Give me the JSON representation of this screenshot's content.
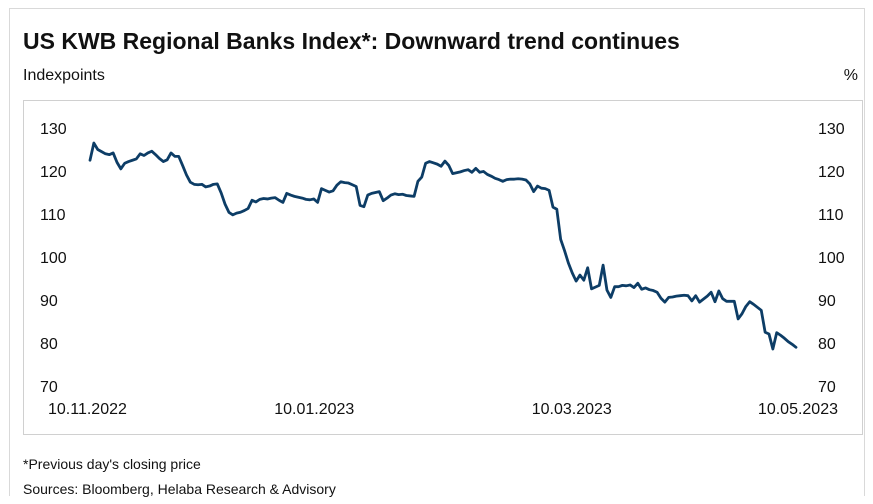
{
  "chart_data": {
    "type": "line",
    "title": "US KWB Regional Banks Index*: Downward trend continues",
    "ylabel_left": "Indexpoints",
    "ylabel_right": "%",
    "ylim": [
      70,
      130
    ],
    "yticks": [
      70,
      80,
      90,
      100,
      110,
      120,
      130
    ],
    "x_start": "10.11.2022",
    "x_end": "10.05.2023",
    "xticks": [
      "10.11.2022",
      "10.01.2023",
      "10.03.2023",
      "10.05.2023"
    ],
    "grid": false,
    "color": "#0d3d66",
    "series": [
      {
        "name": "",
        "values": [
          122.5,
          126.5,
          125,
          124.5,
          124,
          123.8,
          124.2,
          122,
          120.5,
          121.8,
          122.2,
          122.5,
          122.8,
          124,
          123.6,
          124.2,
          124.6,
          123.8,
          122.9,
          122.2,
          122.6,
          124.2,
          123.4,
          123.4,
          121.3,
          119.1,
          117.4,
          116.9,
          116.8,
          116.9,
          116.3,
          116.5,
          116.9,
          117,
          114.9,
          112.3,
          110.4,
          109.8,
          110.2,
          110.4,
          110.8,
          111.3,
          113.2,
          112.8,
          113.4,
          113.6,
          113.5,
          113.7,
          113.8,
          113.2,
          112.7,
          114.8,
          114.4,
          114.1,
          113.9,
          113.7,
          113.4,
          113.3,
          113.5,
          112.7,
          115.9,
          115.5,
          115.1,
          115.4,
          116.7,
          117.5,
          117.3,
          117.2,
          116.8,
          116.4,
          112,
          111.7,
          114.4,
          114.8,
          115,
          115.2,
          113.1,
          113.7,
          114.4,
          114.7,
          114.5,
          114.6,
          114.3,
          114.2,
          114.1,
          117.6,
          118.6,
          121.8,
          122.2,
          121.9,
          121.6,
          121.1,
          122.3,
          121.3,
          119.4,
          119.6,
          119.8,
          120.1,
          120.3,
          119.7,
          120.6,
          119.7,
          119.9,
          119.2,
          118.8,
          118.3,
          118,
          117.6,
          118,
          118.1,
          118.1,
          118.2,
          118.1,
          117.9,
          117,
          115.2,
          116.5,
          116,
          115.9,
          115.5,
          111.6,
          111.1,
          104.1,
          101.5,
          98.6,
          96.3,
          94.4,
          95.8,
          94.6,
          97.5,
          92.6,
          93,
          93.4,
          98.1,
          92.3,
          90.6,
          93.1,
          93.1,
          93.4,
          93.3,
          93.5,
          92.9,
          93.9,
          92.5,
          92.8,
          92.4,
          92.2,
          91.8,
          90.4,
          89.5,
          90.6,
          90.7,
          90.9,
          91,
          91.1,
          91,
          89.8,
          91,
          89.5,
          90.2,
          90.9,
          91.8,
          89.6,
          92.1,
          90.3,
          89.7,
          89.7,
          89.7,
          85.6,
          86.8,
          88.5,
          89.6,
          89,
          88.3,
          87.6,
          82.5,
          82.1,
          78.6,
          82.4,
          81.8,
          81.1,
          80.3,
          79.7,
          79
        ]
      }
    ]
  },
  "footer": {
    "footnote": "*Previous day's closing price",
    "sources": "Sources: Bloomberg, Helaba Research & Advisory"
  }
}
